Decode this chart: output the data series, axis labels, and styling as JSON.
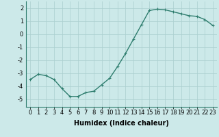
{
  "x": [
    0,
    1,
    2,
    3,
    4,
    5,
    6,
    7,
    8,
    9,
    10,
    11,
    12,
    13,
    14,
    15,
    16,
    17,
    18,
    19,
    20,
    21,
    22,
    23
  ],
  "y": [
    -3.5,
    -3.1,
    -3.2,
    -3.5,
    -4.2,
    -4.8,
    -4.8,
    -4.5,
    -4.4,
    -3.9,
    -3.4,
    -2.5,
    -1.5,
    -0.4,
    0.7,
    1.8,
    1.9,
    1.85,
    1.7,
    1.55,
    1.4,
    1.35,
    1.1,
    0.65
  ],
  "line_color": "#2e7d6e",
  "marker": "+",
  "marker_size": 3,
  "bg_color": "#cce9e9",
  "grid_color": "#aacfcf",
  "xlabel": "Humidex (Indice chaleur)",
  "xlabel_fontsize": 7,
  "yticks": [
    -5,
    -4,
    -3,
    -2,
    -1,
    0,
    1,
    2
  ],
  "xticks": [
    0,
    1,
    2,
    3,
    4,
    5,
    6,
    7,
    8,
    9,
    10,
    11,
    12,
    13,
    14,
    15,
    16,
    17,
    18,
    19,
    20,
    21,
    22,
    23
  ],
  "xlim": [
    -0.5,
    23.5
  ],
  "ylim": [
    -5.6,
    2.5
  ],
  "tick_fontsize": 6,
  "linewidth": 1.0
}
